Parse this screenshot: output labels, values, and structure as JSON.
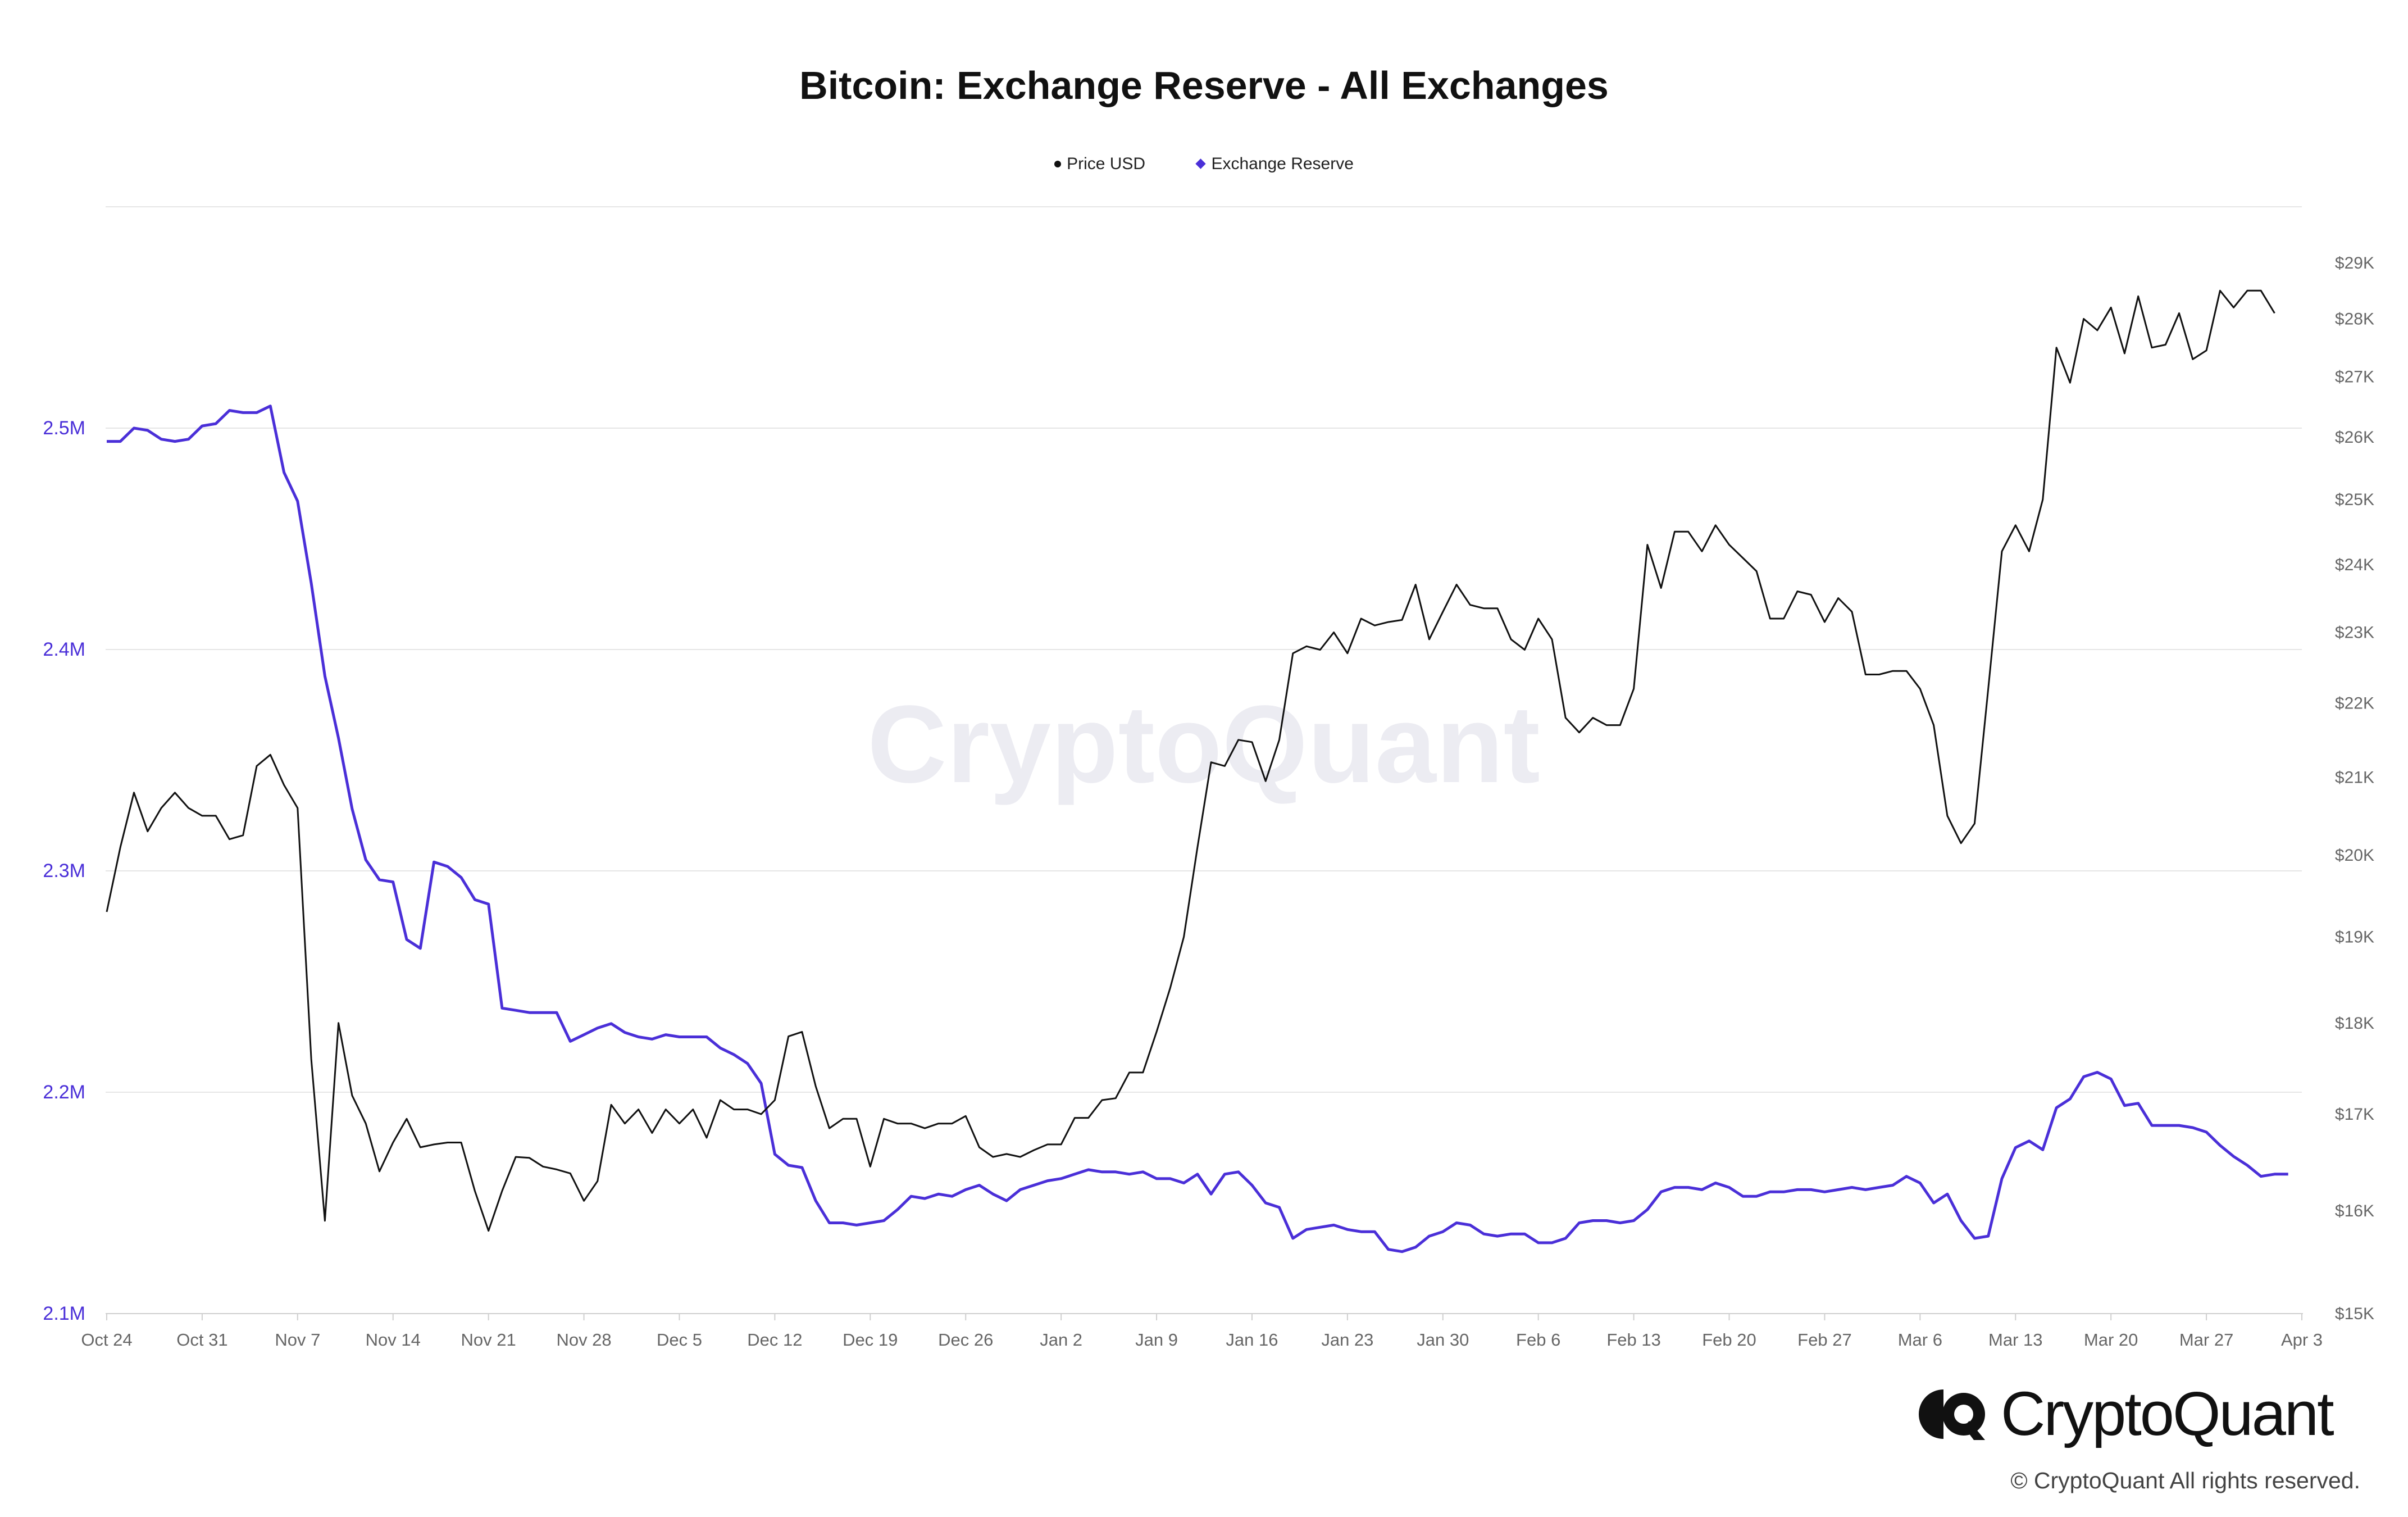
{
  "chart_data": {
    "type": "line",
    "title": "Bitcoin: Exchange Reserve - All Exchanges",
    "watermark": "CryptoQuant",
    "legend_position": "top-center",
    "grid": "horizontal",
    "x_ticks": [
      "Oct 24",
      "Oct 31",
      "Nov 7",
      "Nov 14",
      "Nov 21",
      "Nov 28",
      "Dec 5",
      "Dec 12",
      "Dec 19",
      "Dec 26",
      "Jan 2",
      "Jan 9",
      "Jan 16",
      "Jan 23",
      "Jan 30",
      "Feb 6",
      "Feb 13",
      "Feb 20",
      "Feb 27",
      "Mar 6",
      "Mar 13",
      "Mar 20",
      "Mar 27",
      "Apr 3"
    ],
    "x_range": [
      "2022-10-24",
      "2023-04-03"
    ],
    "y_left": {
      "label": "Exchange Reserve",
      "ticks": [
        "2.1M",
        "2.2M",
        "2.3M",
        "2.4M",
        "2.5M"
      ],
      "range": [
        2100000,
        2600000
      ]
    },
    "y_right": {
      "label": "Price USD",
      "ticks": [
        "$15K",
        "$16K",
        "$17K",
        "$18K",
        "$19K",
        "$20K",
        "$21K",
        "$22K",
        "$23K",
        "$24K",
        "$25K",
        "$26K",
        "$27K",
        "$28K",
        "$29K"
      ],
      "range": [
        15000,
        29000
      ],
      "scale": "log"
    },
    "colors": {
      "price": "#111111",
      "reserve": "#4a2fd8",
      "grid": "#e6e6e6",
      "axis_left": "#4a2fd8",
      "axis_right": "#666666"
    },
    "series": [
      {
        "name": "Price USD",
        "axis": "right",
        "start_date": "2022-10-24",
        "interval": "daily",
        "values": [
          19300,
          20100,
          20800,
          20300,
          20600,
          20800,
          20600,
          20500,
          20500,
          20200,
          20250,
          21150,
          21300,
          20900,
          20600,
          17600,
          15900,
          18000,
          17200,
          16900,
          16400,
          16700,
          16950,
          16650,
          16680,
          16700,
          16700,
          16200,
          15800,
          16200,
          16550,
          16540,
          16450,
          16420,
          16380,
          16100,
          16300,
          17100,
          16900,
          17050,
          16800,
          17050,
          16900,
          17050,
          16750,
          17150,
          17050,
          17050,
          17000,
          17150,
          17850,
          17900,
          17300,
          16850,
          16950,
          16950,
          16450,
          16950,
          16900,
          16900,
          16850,
          16900,
          16900,
          16980,
          16650,
          16550,
          16580,
          16550,
          16620,
          16680,
          16680,
          16960,
          16960,
          17150,
          17170,
          17450,
          17450,
          17900,
          18400,
          19000,
          20100,
          21200,
          21150,
          21500,
          21470,
          20950,
          21500,
          22700,
          22800,
          22750,
          23000,
          22700,
          23200,
          23100,
          23150,
          23180,
          23700,
          22900,
          23300,
          23700,
          23400,
          23350,
          23350,
          22900,
          22750,
          23200,
          22900,
          21800,
          21600,
          21800,
          21700,
          21700,
          22200,
          24300,
          23650,
          24500,
          24500,
          24200,
          24600,
          24300,
          24100,
          23900,
          23200,
          23200,
          23600,
          23550,
          23150,
          23500,
          23300,
          22400,
          22400,
          22450,
          22450,
          22200,
          21700,
          20500,
          20150,
          20400,
          22200,
          24200,
          24600,
          24200,
          25000,
          27500,
          26900,
          28000,
          27800,
          28200,
          27400,
          28400,
          27500,
          27550,
          28100,
          27300,
          27450,
          28500,
          28200,
          28500,
          28500,
          28100
        ]
      },
      {
        "name": "Exchange Reserve",
        "axis": "left",
        "start_date": "2022-10-24",
        "interval": "daily",
        "values": [
          2494000,
          2494000,
          2500000,
          2499000,
          2495000,
          2494000,
          2495000,
          2501000,
          2502000,
          2508000,
          2507000,
          2507000,
          2510000,
          2480000,
          2467000,
          2430000,
          2388000,
          2360000,
          2328000,
          2305000,
          2296000,
          2295000,
          2269000,
          2265000,
          2304000,
          2302000,
          2297000,
          2287000,
          2285000,
          2238000,
          2237000,
          2236000,
          2236000,
          2236000,
          2223000,
          2226000,
          2229000,
          2231000,
          2227000,
          2225000,
          2224000,
          2226000,
          2225000,
          2225000,
          2225000,
          2220000,
          2217000,
          2213000,
          2204000,
          2172000,
          2167000,
          2166000,
          2151000,
          2141000,
          2141000,
          2140000,
          2141000,
          2142000,
          2147000,
          2153000,
          2152000,
          2154000,
          2153000,
          2156000,
          2158000,
          2154000,
          2151000,
          2156000,
          2158000,
          2160000,
          2161000,
          2163000,
          2165000,
          2164000,
          2164000,
          2163000,
          2164000,
          2161000,
          2161000,
          2159000,
          2163000,
          2154000,
          2163000,
          2164000,
          2158000,
          2150000,
          2148000,
          2134000,
          2138000,
          2139000,
          2140000,
          2138000,
          2137000,
          2137000,
          2129000,
          2128000,
          2130000,
          2135000,
          2137000,
          2141000,
          2140000,
          2136000,
          2135000,
          2136000,
          2136000,
          2132000,
          2132000,
          2134000,
          2141000,
          2142000,
          2142000,
          2141000,
          2142000,
          2147000,
          2155000,
          2157000,
          2157000,
          2156000,
          2159000,
          2157000,
          2153000,
          2153000,
          2155000,
          2155000,
          2156000,
          2156000,
          2155000,
          2156000,
          2157000,
          2156000,
          2157000,
          2158000,
          2162000,
          2159000,
          2150000,
          2154000,
          2142000,
          2134000,
          2135000,
          2161000,
          2175000,
          2178000,
          2174000,
          2193000,
          2197000,
          2207000,
          2209000,
          2206000,
          2194000,
          2195000,
          2185000,
          2185000,
          2185000,
          2184000,
          2182000,
          2176000,
          2171000,
          2167000,
          2162000,
          2163000,
          2163000
        ]
      }
    ]
  },
  "footer": {
    "brand_name": "CryptoQuant",
    "copyright": "© CryptoQuant All rights reserved."
  }
}
